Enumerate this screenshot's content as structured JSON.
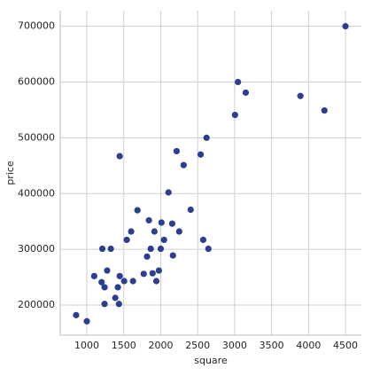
{
  "chart_data": {
    "type": "scatter",
    "xlabel": "square",
    "ylabel": "price",
    "color": "#2c3e8f",
    "grid": true,
    "xlim": [
      640,
      4715
    ],
    "ylim": [
      146000,
      728000
    ],
    "xticks": [
      1000,
      1500,
      2000,
      2500,
      3000,
      3500,
      4000,
      4500
    ],
    "yticks": [
      200000,
      300000,
      400000,
      500000,
      600000,
      700000
    ],
    "x": [
      855,
      1000,
      1100,
      1210,
      1200,
      1240,
      1240,
      1275,
      1325,
      1385,
      1420,
      1445,
      1445,
      1435,
      1505,
      1540,
      1600,
      1625,
      1685,
      1770,
      1815,
      1840,
      1865,
      1890,
      1915,
      1940,
      1975,
      2000,
      2010,
      2045,
      2105,
      2155,
      2165,
      2215,
      2250,
      2310,
      2405,
      2540,
      2575,
      2620,
      2645,
      3005,
      3045,
      3150,
      3890,
      4215,
      4500
    ],
    "y": [
      182000,
      171000,
      252000,
      301000,
      241000,
      232000,
      202000,
      262000,
      301000,
      213000,
      232000,
      252000,
      467000,
      202000,
      243000,
      317000,
      332000,
      243000,
      370000,
      256000,
      287000,
      352000,
      301000,
      257000,
      332000,
      243000,
      262000,
      301000,
      348000,
      317000,
      402000,
      346000,
      289000,
      476000,
      332000,
      451000,
      371000,
      470000,
      317000,
      500000,
      301000,
      541000,
      600000,
      581000,
      575000,
      549000,
      700000
    ]
  }
}
